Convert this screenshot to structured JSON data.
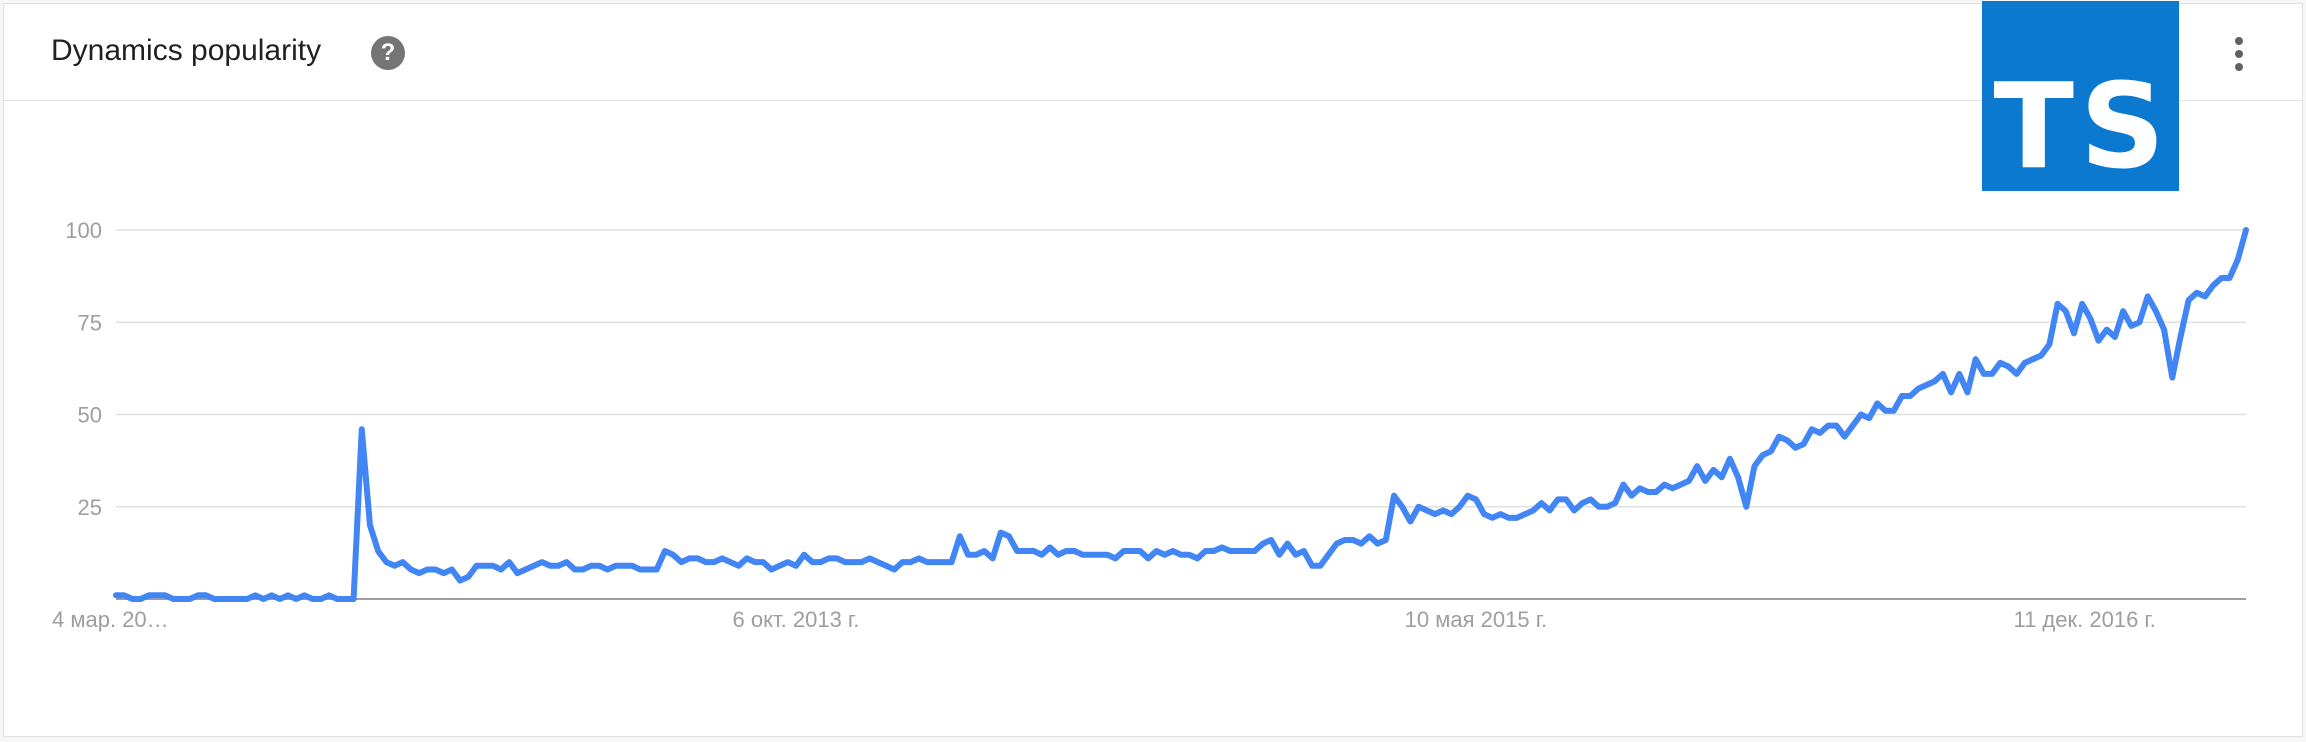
{
  "header": {
    "title": "Dynamics popularity",
    "help_glyph": "?",
    "logo_text": "TS"
  },
  "icons": {
    "help": "help-circle-icon",
    "menu": "more-vertical-icon"
  },
  "colors": {
    "line": "#4285f4",
    "logo_bg": "#0a79cf",
    "grid": "#e0e0e0",
    "axis_text": "#9e9e9e"
  },
  "chart_data": {
    "type": "line",
    "title": "Dynamics popularity",
    "xlabel": "",
    "ylabel": "",
    "ylim": [
      0,
      100
    ],
    "grid": true,
    "legend": "none",
    "y_ticks": [
      {
        "value": 25,
        "label": "25"
      },
      {
        "value": 50,
        "label": "50"
      },
      {
        "value": 75,
        "label": "75"
      },
      {
        "value": 100,
        "label": "100"
      }
    ],
    "x_ticks": [
      {
        "index": 0,
        "label": "4 мар. 20…"
      },
      {
        "index": 83,
        "label": "6 окт. 2013 г."
      },
      {
        "index": 166,
        "label": "10 мая 2015 г."
      },
      {
        "index": 249,
        "label": "11 дек. 2016 г."
      }
    ],
    "series": [
      {
        "values": [
          1,
          1,
          0,
          0,
          1,
          1,
          1,
          0,
          0,
          0,
          1,
          1,
          0,
          0,
          0,
          0,
          0,
          1,
          0,
          1,
          0,
          1,
          0,
          1,
          0,
          0,
          1,
          0,
          0,
          0,
          46,
          20,
          13,
          10,
          9,
          10,
          8,
          7,
          8,
          8,
          7,
          8,
          5,
          6,
          9,
          9,
          9,
          8,
          10,
          7,
          8,
          9,
          10,
          9,
          9,
          10,
          8,
          8,
          9,
          9,
          8,
          9,
          9,
          9,
          8,
          8,
          8,
          13,
          12,
          10,
          11,
          11,
          10,
          10,
          11,
          10,
          9,
          11,
          10,
          10,
          8,
          9,
          10,
          9,
          12,
          10,
          10,
          11,
          11,
          10,
          10,
          10,
          11,
          10,
          9,
          8,
          10,
          10,
          11,
          10,
          10,
          10,
          10,
          17,
          12,
          12,
          13,
          11,
          18,
          17,
          13,
          13,
          13,
          12,
          14,
          12,
          13,
          13,
          12,
          12,
          12,
          12,
          11,
          13,
          13,
          13,
          11,
          13,
          12,
          13,
          12,
          12,
          11,
          13,
          13,
          14,
          13,
          13,
          13,
          13,
          15,
          16,
          12,
          15,
          12,
          13,
          9,
          9,
          12,
          15,
          16,
          16,
          15,
          17,
          15,
          16,
          28,
          25,
          21,
          25,
          24,
          23,
          24,
          23,
          25,
          28,
          27,
          23,
          22,
          23,
          22,
          22,
          23,
          24,
          26,
          24,
          27,
          27,
          24,
          26,
          27,
          25,
          25,
          26,
          31,
          28,
          30,
          29,
          29,
          31,
          30,
          31,
          32,
          36,
          32,
          35,
          33,
          38,
          33,
          25,
          36,
          39,
          40,
          44,
          43,
          41,
          42,
          46,
          45,
          47,
          47,
          44,
          47,
          50,
          49,
          53,
          51,
          51,
          55,
          55,
          57,
          58,
          59,
          61,
          56,
          61,
          56,
          65,
          61,
          61,
          64,
          63,
          61,
          64,
          65,
          66,
          69,
          80,
          78,
          72,
          80,
          76,
          70,
          73,
          71,
          78,
          74,
          75,
          82,
          78,
          73,
          60,
          71,
          81,
          83,
          82,
          85,
          87,
          87,
          92,
          100
        ]
      }
    ]
  }
}
